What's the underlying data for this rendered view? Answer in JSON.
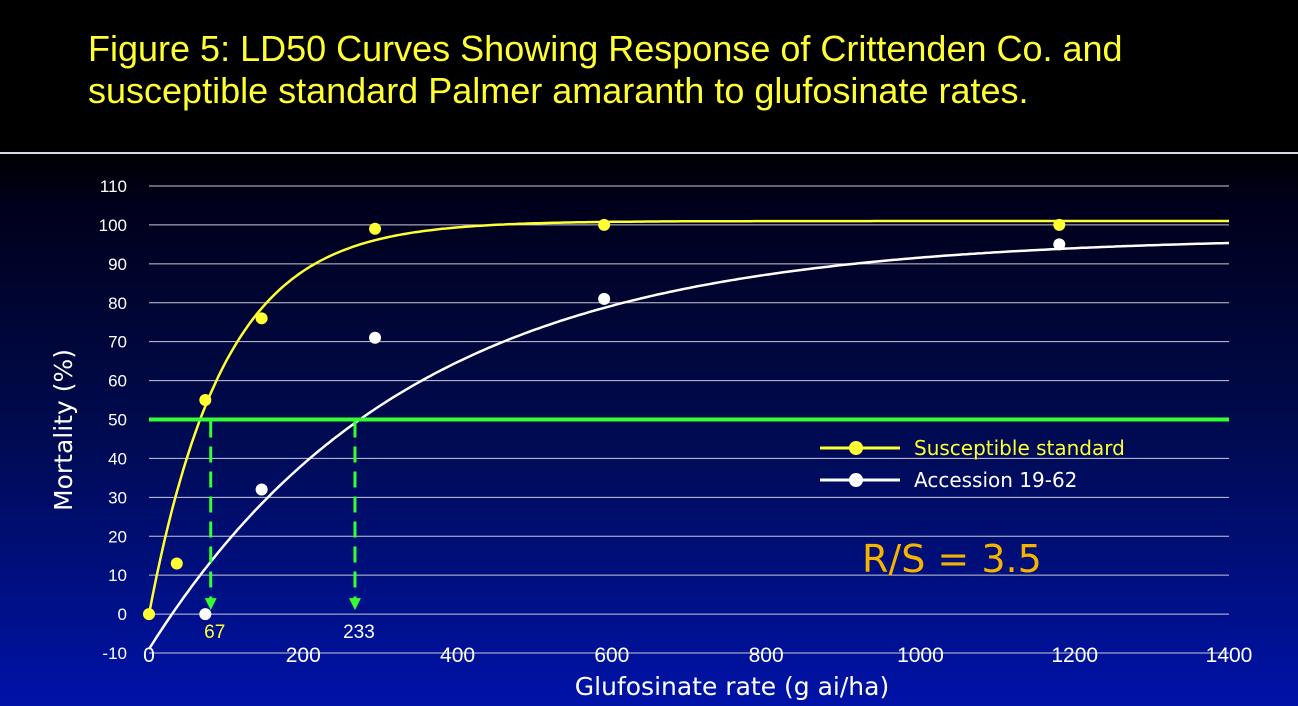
{
  "title": "Figure 5: LD50 Curves Showing Response of Crittenden Co. and susceptible standard Palmer amaranth to glufosinate rates.",
  "chart_data": {
    "type": "scatter",
    "xlabel": "Glufosinate rate (g ai/ha)",
    "ylabel": "Mortality (%)",
    "xlim": [
      0,
      1400
    ],
    "ylim": [
      -10,
      110
    ],
    "x_ticks": [
      "0",
      "200",
      "400",
      "600",
      "800",
      "1000",
      "1200",
      "1400"
    ],
    "y_ticks": [
      "-10",
      "0",
      "10",
      "20",
      "30",
      "40",
      "50",
      "60",
      "70",
      "80",
      "90",
      "100",
      "110"
    ],
    "grid": true,
    "legend_position": "right",
    "series": [
      {
        "name": "Susceptible standard",
        "color": "#ffff33",
        "x": [
          0,
          36,
          73,
          146,
          293,
          590,
          1180
        ],
        "y": [
          0,
          13,
          55,
          76,
          99,
          100,
          100
        ],
        "fit_curve": "exponential rise to ~101%"
      },
      {
        "name": "Accession 19-62",
        "color": "#ffffff",
        "x": [
          73,
          146,
          293,
          590,
          1180
        ],
        "y": [
          0,
          32,
          71,
          81,
          95
        ],
        "fit_curve": "exponential rise to ~97%"
      }
    ],
    "reference_line": {
      "y": 50,
      "color": "#33ff33"
    },
    "ld50_markers": [
      {
        "x": 67,
        "label": "67",
        "color": "#ffff33"
      },
      {
        "x": 233,
        "label": "233",
        "color": "#ffffff"
      }
    ],
    "annotation": {
      "text": "R/S = 3.5",
      "color": "#f5b400"
    }
  }
}
